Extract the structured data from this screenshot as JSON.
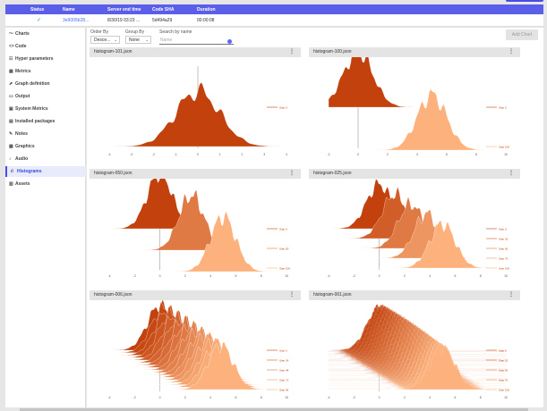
{
  "header": {
    "status": "Status",
    "name": "Name",
    "server_end": "Server end time",
    "code_sha": "Code SHA",
    "duration": "Duration"
  },
  "experiment": {
    "status_icon": "check-icon",
    "status_mark": "✓",
    "name": "3e9005b28...",
    "server_end": "8/30/19 03:23 ...",
    "code_sha": "5d494a29",
    "duration": "00:00:08"
  },
  "sidebar": {
    "items": [
      {
        "label": "Charts",
        "icon": "chart-icon",
        "glyph": "〜"
      },
      {
        "label": "Code",
        "icon": "code-icon",
        "glyph": "<>"
      },
      {
        "label": "Hyper parameters",
        "icon": "sliders-icon",
        "glyph": "☷"
      },
      {
        "label": "Metrics",
        "icon": "table-icon",
        "glyph": "▦"
      },
      {
        "label": "Graph definition",
        "icon": "graph-icon",
        "glyph": "⬈"
      },
      {
        "label": "Output",
        "icon": "output-icon",
        "glyph": "▭"
      },
      {
        "label": "System Metrics",
        "icon": "cpu-icon",
        "glyph": "▣"
      },
      {
        "label": "Installed packages",
        "icon": "package-icon",
        "glyph": "▤"
      },
      {
        "label": "Notes",
        "icon": "pencil-icon",
        "glyph": "✎"
      },
      {
        "label": "Graphics",
        "icon": "image-icon",
        "glyph": "▩"
      },
      {
        "label": "Audio",
        "icon": "audio-icon",
        "glyph": "♪"
      },
      {
        "label": "Histograms",
        "icon": "histogram-icon",
        "glyph": "ıl"
      },
      {
        "label": "Assets",
        "icon": "assets-icon",
        "glyph": "▥"
      }
    ],
    "active": 11
  },
  "controls": {
    "order_by_label": "Order By",
    "order_by_value": "Desce...",
    "group_by_label": "Group By",
    "group_by_value": "None",
    "search_label": "Search by name",
    "search_placeholder": "Name",
    "add_chart": "Add Chart"
  },
  "panels": [
    {
      "title": "histogram-101.json",
      "menu": "⋮"
    },
    {
      "title": "histogram-100.json",
      "menu": "⋮"
    },
    {
      "title": "histogram-050.json",
      "menu": "⋮"
    },
    {
      "title": "histogram-025.json",
      "menu": "⋮"
    },
    {
      "title": "histogram-006.json",
      "menu": "⋮"
    },
    {
      "title": "histogram-001.json",
      "menu": "⋮"
    }
  ],
  "chart_data": [
    {
      "type": "area",
      "title": "histogram-101.json",
      "xlim": [
        -4,
        4
      ],
      "x_ticks": [
        "-4",
        "-3",
        "-2",
        "-1",
        "0",
        "1",
        "2",
        "3",
        "4"
      ],
      "series": [
        {
          "name": "Step 0",
          "mean": 0,
          "sd": 1.0
        }
      ]
    },
    {
      "type": "area",
      "title": "histogram-100.json",
      "xlim": [
        -2,
        10
      ],
      "x_ticks": [
        "-2",
        "0",
        "2",
        "4",
        "6",
        "8",
        "10"
      ],
      "series": [
        {
          "name": "Step 0",
          "mean": 0,
          "sd": 1.0
        },
        {
          "name": "Step 100",
          "mean": 5,
          "sd": 1.0
        }
      ]
    },
    {
      "type": "area",
      "title": "histogram-050.json",
      "xlim": [
        -4,
        10
      ],
      "x_ticks": [
        "-4",
        "-2",
        "0",
        "2",
        "4",
        "6",
        "8",
        "10"
      ],
      "series": [
        {
          "name": "Step 0",
          "mean": 0,
          "sd": 1.0
        },
        {
          "name": "Step 50",
          "mean": 2.5,
          "sd": 1.0
        },
        {
          "name": "Step 100",
          "mean": 5,
          "sd": 1.0
        }
      ]
    },
    {
      "type": "area",
      "title": "histogram-025.json",
      "xlim": [
        -4,
        10
      ],
      "x_ticks": [
        "-4",
        "-2",
        "0",
        "2",
        "4",
        "6",
        "8",
        "10"
      ],
      "series": [
        {
          "name": "Step 0",
          "mean": 0,
          "sd": 1.0
        },
        {
          "name": "Step 25",
          "mean": 1.25,
          "sd": 1.0
        },
        {
          "name": "Step 50",
          "mean": 2.5,
          "sd": 1.0
        },
        {
          "name": "Step 75",
          "mean": 3.75,
          "sd": 1.0
        },
        {
          "name": "Step 100",
          "mean": 5,
          "sd": 1.0
        }
      ]
    },
    {
      "type": "area",
      "title": "histogram-006.json",
      "xlim": [
        -4,
        10
      ],
      "x_ticks": [
        "-4",
        "-2",
        "0",
        "2",
        "4",
        "6",
        "8",
        "10"
      ],
      "step_every": 6,
      "legend": [
        "Step 0",
        "Step 24",
        "Step 48",
        "Step 72",
        "Step 96"
      ],
      "mean_range": [
        0,
        5
      ]
    },
    {
      "type": "area",
      "title": "histogram-001.json",
      "xlim": [
        -4,
        10
      ],
      "x_ticks": [
        "-4",
        "-2",
        "0",
        "2",
        "4",
        "6",
        "8",
        "10"
      ],
      "step_every": 1,
      "legend": [
        "Step 0",
        "Step 25",
        "Step 50",
        "Step 75",
        "Step 100"
      ],
      "mean_range": [
        0,
        5
      ]
    }
  ],
  "colors": {
    "dark": "#c2410c",
    "light": "#fdb27d",
    "header": "#5b5ee8",
    "accent": "#4a4ce2"
  }
}
